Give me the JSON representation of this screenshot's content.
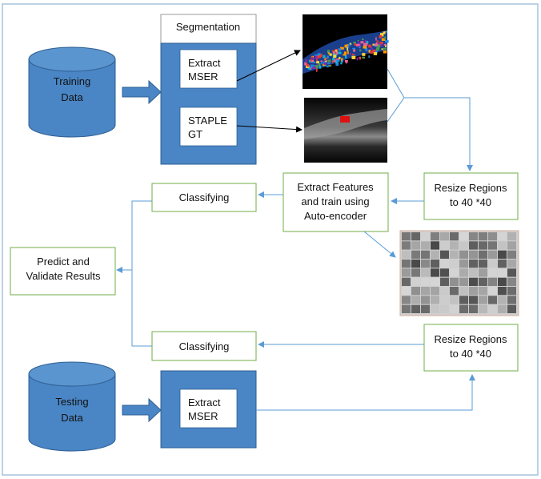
{
  "colors": {
    "frame": "#8fb4d6",
    "blue_fill": "#4a86c5",
    "blue_stroke": "#2f5f93",
    "green_stroke": "#70ad47",
    "arrow_blue": "#5b9bd5",
    "arrow_black": "#000000"
  },
  "training": {
    "cylinder_line1": "Training",
    "cylinder_line2": "Data",
    "segmentation_title": "Segmentation",
    "extract_line1": "Extract",
    "extract_line2": "MSER",
    "staple_line1": "STAPLE",
    "staple_line2": "GT"
  },
  "pipeline": {
    "resize_top_line1": "Resize Regions",
    "resize_top_line2": "to 40 *40",
    "features_line1": "Extract Features",
    "features_line2": "and train using",
    "features_line3": "Auto-encoder",
    "classify_top": "Classifying",
    "predict_line1": "Predict and",
    "predict_line2": "Validate Results",
    "classify_bottom": "Classifying",
    "resize_bottom_line1": "Resize Regions",
    "resize_bottom_line2": "to 40 *40"
  },
  "testing": {
    "cylinder_line1": "Testing",
    "cylinder_line2": "Data",
    "extract_line1": "Extract",
    "extract_line2": "MSER"
  },
  "images": {
    "mser_image": "oct-scan-mser-color-regions",
    "gt_image": "oct-scan-ground-truth",
    "features_image": "autoencoder-feature-grid"
  }
}
